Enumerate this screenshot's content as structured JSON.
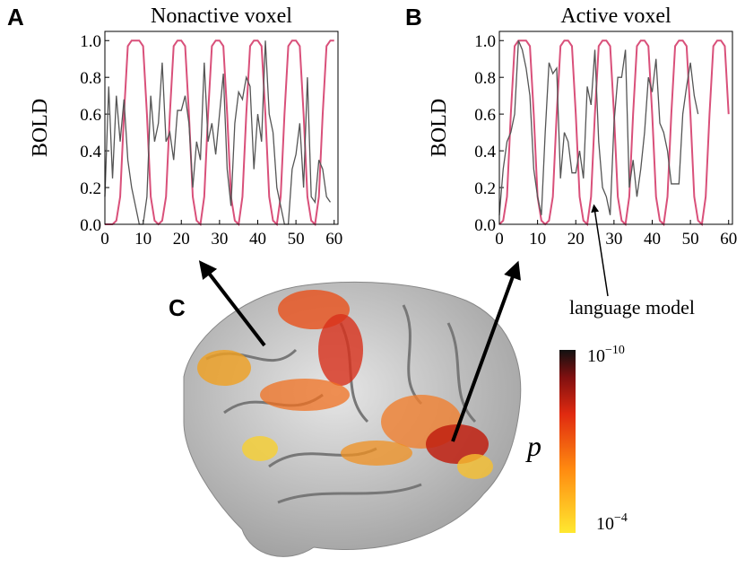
{
  "panels": {
    "a": "A",
    "b": "B",
    "c": "C"
  },
  "chart_data": [
    {
      "type": "line",
      "title": "Nonactive voxel",
      "ylabel": "BOLD",
      "x": [
        0,
        1,
        2,
        3,
        4,
        5,
        6,
        7,
        8,
        9,
        10,
        11,
        12,
        13,
        14,
        15,
        16,
        17,
        18,
        19,
        20,
        21,
        22,
        23,
        24,
        25,
        26,
        27,
        28,
        29,
        30,
        31,
        32,
        33,
        34,
        35,
        36,
        37,
        38,
        39,
        40,
        41,
        42,
        43,
        44,
        45,
        46,
        47,
        48,
        49,
        50,
        51,
        52,
        53,
        54,
        55,
        56,
        57,
        58,
        59,
        60
      ],
      "series": [
        {
          "color": "#d9507a",
          "values": [
            0,
            0,
            0,
            0.02,
            0.15,
            0.6,
            0.97,
            1,
            1,
            1,
            0.97,
            0.6,
            0.15,
            0.02,
            0,
            0.02,
            0.15,
            0.6,
            0.97,
            1,
            1,
            0.97,
            0.6,
            0.15,
            0.02,
            0,
            0.15,
            0.6,
            0.97,
            1,
            1,
            0.97,
            0.6,
            0.15,
            0.02,
            0,
            0.15,
            0.6,
            0.97,
            1,
            1,
            0.97,
            0.6,
            0.15,
            0.02,
            0,
            0.15,
            0.6,
            0.97,
            1,
            1,
            0.97,
            0.6,
            0.15,
            0.02,
            0,
            0.15,
            0.6,
            0.97,
            1,
            1
          ]
        },
        {
          "color": "#555555",
          "values": [
            0.15,
            0.75,
            0.25,
            0.7,
            0.45,
            0.68,
            0.35,
            0.2,
            0.1,
            0,
            0,
            0.15,
            0.7,
            0.45,
            0.55,
            0.88,
            0.45,
            0.5,
            0.35,
            0.62,
            0.62,
            0.7,
            0.55,
            0.2,
            0.45,
            0.35,
            0.88,
            0.45,
            0.55,
            0.38,
            0.6,
            0.82,
            0.3,
            0.1,
            0.55,
            0.72,
            0.68,
            0.8,
            0.75,
            0.3,
            0.6,
            0.45,
            1.0,
            0.6,
            0.5,
            0.2,
            0.1,
            0,
            0,
            0.3,
            0.38,
            0.55,
            0.2,
            0.8,
            0.15,
            0.12,
            0.35,
            0.3,
            0.15,
            0.12,
            null
          ]
        }
      ],
      "xlim": [
        0,
        61
      ],
      "xticks": [
        0,
        10,
        20,
        30,
        40,
        50,
        60
      ],
      "ylim": [
        0,
        1.05
      ],
      "yticks": [
        {
          "value": 0,
          "label": "0.0"
        },
        {
          "value": 0.2,
          "label": "0.2"
        },
        {
          "value": 0.4,
          "label": "0.4"
        },
        {
          "value": 0.6,
          "label": "0.6"
        },
        {
          "value": 0.8,
          "label": "0.8"
        },
        {
          "value": 1,
          "label": "1.0"
        }
      ]
    },
    {
      "type": "line",
      "title": "Active voxel",
      "ylabel": "BOLD",
      "annotation": "language model",
      "x": [
        0,
        1,
        2,
        3,
        4,
        5,
        6,
        7,
        8,
        9,
        10,
        11,
        12,
        13,
        14,
        15,
        16,
        17,
        18,
        19,
        20,
        21,
        22,
        23,
        24,
        25,
        26,
        27,
        28,
        29,
        30,
        31,
        32,
        33,
        34,
        35,
        36,
        37,
        38,
        39,
        40,
        41,
        42,
        43,
        44,
        45,
        46,
        47,
        48,
        49,
        50,
        51,
        52,
        53,
        54,
        55,
        56,
        57,
        58,
        59,
        60
      ],
      "series": [
        {
          "color": "#d9507a",
          "values": [
            0,
            0.02,
            0.15,
            0.6,
            0.97,
            1,
            1,
            1,
            0.97,
            0.6,
            0.15,
            0.02,
            0,
            0.02,
            0.15,
            0.6,
            0.97,
            1,
            1,
            0.97,
            0.6,
            0.15,
            0.02,
            0,
            0.15,
            0.6,
            0.97,
            1,
            1,
            0.97,
            0.6,
            0.15,
            0.02,
            0,
            0.15,
            0.6,
            0.97,
            1,
            1,
            0.97,
            0.6,
            0.15,
            0.02,
            0,
            0.15,
            0.6,
            0.97,
            1,
            1,
            0.97,
            0.6,
            0.15,
            0.02,
            0,
            0.15,
            0.6,
            0.97,
            1,
            1,
            0.97,
            0.6
          ]
        },
        {
          "color": "#555555",
          "values": [
            0.05,
            0.3,
            0.45,
            0.5,
            0.6,
            1.0,
            0.95,
            0.85,
            0.7,
            0.3,
            0.15,
            0.05,
            0.5,
            0.88,
            0.82,
            0.85,
            0.25,
            0.5,
            0.45,
            0.28,
            0.28,
            0.4,
            0.25,
            0.75,
            0.65,
            0.95,
            0.45,
            0.2,
            0.15,
            0.05,
            0.55,
            0.8,
            0.8,
            0.95,
            0.2,
            0.35,
            0.15,
            0.3,
            0.5,
            0.8,
            0.72,
            0.9,
            0.55,
            0.5,
            0.4,
            0.22,
            0.22,
            0.22,
            0.6,
            0.75,
            0.88,
            0.7,
            0.6,
            null,
            null,
            null,
            null,
            null,
            null,
            null,
            null
          ]
        }
      ],
      "xlim": [
        0,
        61
      ],
      "xticks": [
        0,
        10,
        20,
        30,
        40,
        50,
        60
      ],
      "ylim": [
        0,
        1.05
      ],
      "yticks": [
        {
          "value": 0,
          "label": "0.0"
        },
        {
          "value": 0.2,
          "label": "0.2"
        },
        {
          "value": 0.4,
          "label": "0.4"
        },
        {
          "value": 0.6,
          "label": "0.6"
        },
        {
          "value": 0.8,
          "label": "0.8"
        },
        {
          "value": 1,
          "label": "1.0"
        }
      ]
    }
  ],
  "colorbar": {
    "label": "p",
    "top": {
      "base": "10",
      "exponent": "−10"
    },
    "bottom": {
      "base": "10",
      "exponent": "−4"
    }
  }
}
